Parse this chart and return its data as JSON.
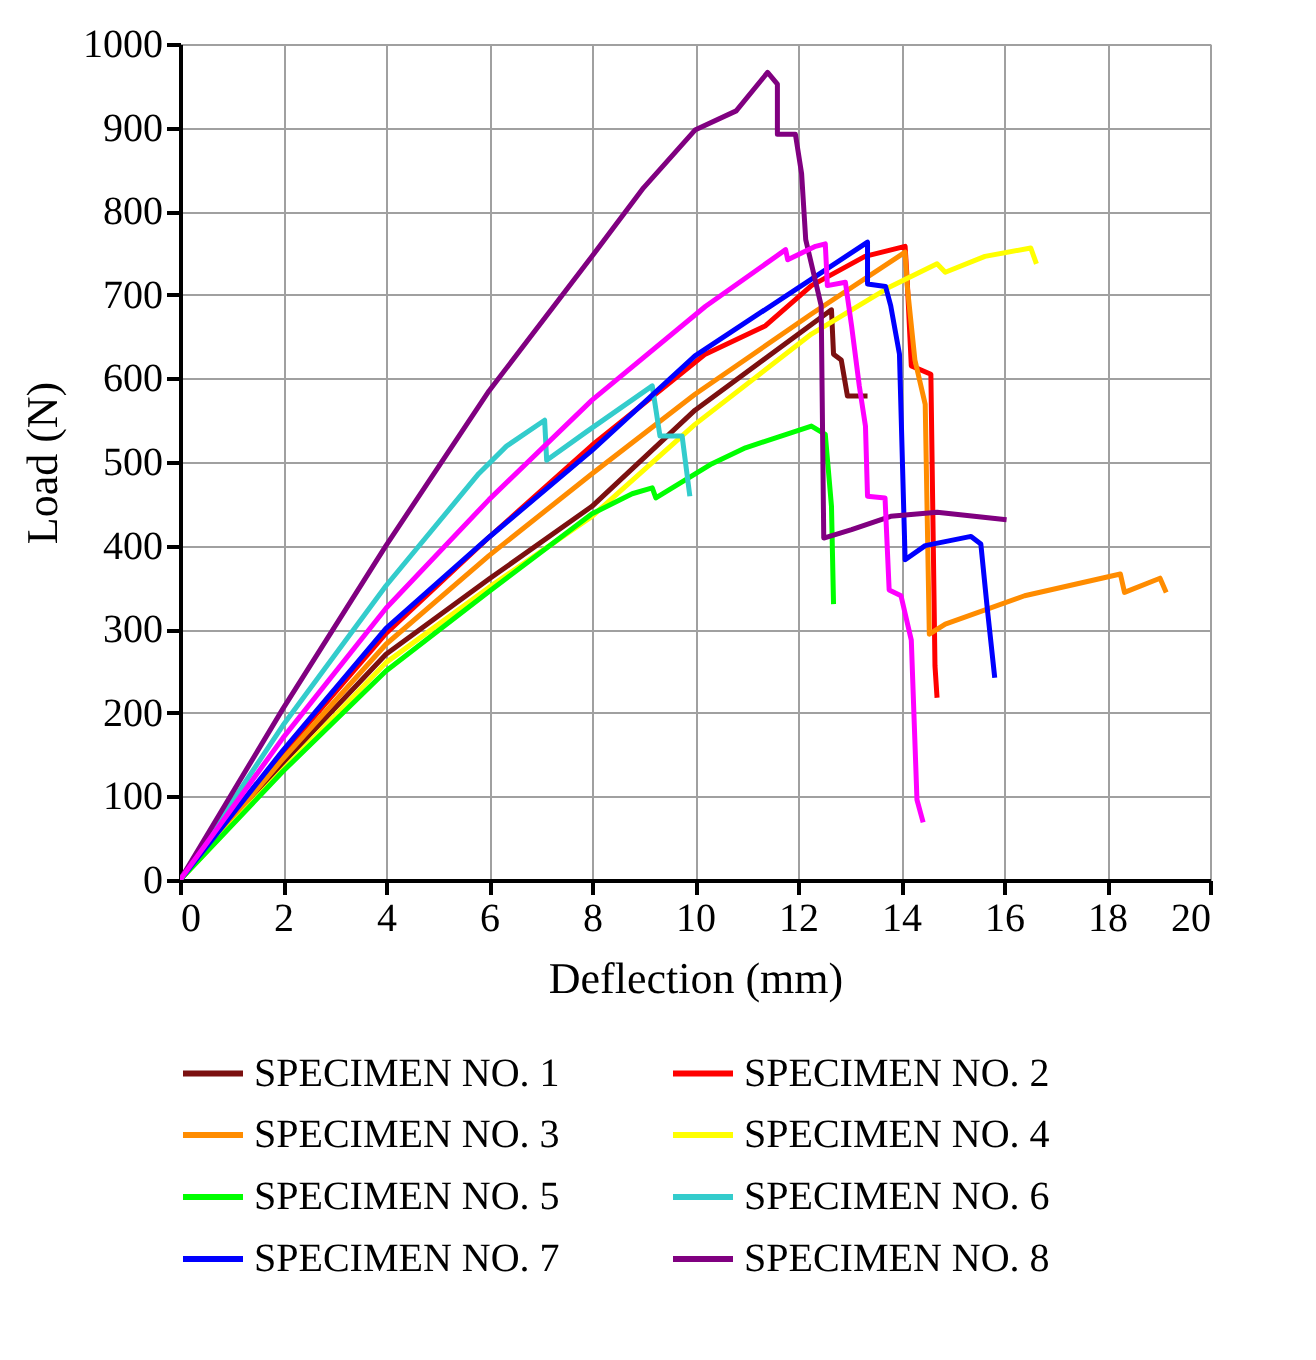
{
  "chart_data": {
    "type": "line",
    "xlabel": "Deflection (mm)",
    "ylabel": "Load (N)",
    "xlim": [
      0,
      20
    ],
    "xticks": [
      0,
      2,
      4,
      6,
      8,
      10,
      12,
      14,
      16,
      18,
      20
    ],
    "ylim": [
      0,
      1000
    ],
    "yticks": [
      0,
      100,
      200,
      300,
      400,
      500,
      600,
      700,
      800,
      900,
      1000
    ],
    "grid": true,
    "legend": "bottom",
    "marker": "none",
    "line_style": "solid",
    "series": [
      {
        "name": "SPECIMEN NO. 1",
        "color": "#7b1010",
        "x": [
          0,
          2,
          4,
          6,
          8,
          10,
          12.65,
          12.69,
          12.84,
          12.96,
          13.35
        ],
        "values": [
          0,
          140,
          270,
          360,
          447,
          562,
          682,
          629,
          622,
          579,
          579
        ]
      },
      {
        "name": "SPECIMEN NO. 2",
        "color": "#ff0000",
        "x": [
          0,
          2,
          4,
          6,
          8,
          10.2,
          11.37,
          12.26,
          13.3,
          14.08,
          14.12,
          14.2,
          14.58,
          14.66,
          14.7
        ],
        "values": [
          0,
          152,
          295,
          410,
          520,
          629,
          663,
          711,
          746,
          758,
          718,
          615,
          605,
          256,
          218
        ]
      },
      {
        "name": "SPECIMEN NO. 3",
        "color": "#ff8c00",
        "x": [
          0,
          2,
          4,
          6,
          8,
          10,
          12.26,
          14.08,
          14.12,
          14.27,
          14.47,
          14.55,
          14.86,
          16.4,
          18.26,
          18.34,
          19.03,
          19.15
        ],
        "values": [
          0,
          145,
          282,
          388,
          486,
          581,
          677,
          751,
          711,
          622,
          569,
          294,
          306,
          340,
          366,
          344,
          361,
          344
        ]
      },
      {
        "name": "SPECIMEN NO. 4",
        "color": "#ffff00",
        "x": [
          0,
          2,
          4,
          6,
          8,
          10,
          12.26,
          13.8,
          14.7,
          14.86,
          15.63,
          16.52,
          16.63
        ],
        "values": [
          0,
          132,
          260,
          350,
          435,
          545,
          653,
          710,
          737,
          727,
          746,
          756,
          737
        ]
      },
      {
        "name": "SPECIMEN NO. 5",
        "color": "#00ff00",
        "x": [
          0,
          2,
          4,
          6,
          8,
          8.78,
          9.17,
          9.24,
          10.33,
          10.98,
          12.26,
          12.53,
          12.65,
          12.69
        ],
        "values": [
          0,
          130,
          250,
          345,
          438,
          462,
          469,
          457,
          498,
          517,
          543,
          533,
          447,
          330
        ]
      },
      {
        "name": "SPECIMEN NO. 6",
        "color": "#33cccc",
        "x": [
          0,
          2,
          4,
          5.8,
          6.34,
          7.08,
          7.12,
          7.89,
          9.17,
          9.32,
          9.75,
          9.9
        ],
        "values": [
          0,
          185,
          352,
          486,
          519,
          550,
          502,
          536,
          591,
          531,
          531,
          459
        ]
      },
      {
        "name": "SPECIMEN NO. 7",
        "color": "#0000ff",
        "x": [
          0,
          2,
          4,
          6,
          8,
          10,
          13.35,
          13.35,
          13.7,
          13.8,
          13.97,
          14.08,
          14.47,
          15.36,
          15.55,
          15.67,
          15.82
        ],
        "values": [
          0,
          155,
          301,
          410,
          514,
          627,
          763,
          713,
          710,
          687,
          629,
          383,
          400,
          411,
          402,
          328,
          242
        ]
      },
      {
        "name": "SPECIMEN NO. 8",
        "color": "#800080",
        "x": [
          0,
          2,
          4,
          6,
          8,
          9,
          10,
          10.8,
          11.41,
          11.6,
          11.6,
          11.95,
          12.07,
          12.15,
          12.45,
          12.5,
          13.04,
          13.8,
          14.7,
          16.05
        ],
        "values": [
          0,
          205,
          400,
          585,
          746,
          828,
          897,
          920,
          966,
          952,
          892,
          892,
          845,
          766,
          687,
          409,
          419,
          435,
          440,
          431
        ]
      },
      {
        "color": "#ff00ff",
        "x": [
          0,
          2,
          4,
          6,
          8,
          10.2,
          11.76,
          11.8,
          12.34,
          12.53,
          12.57,
          12.92,
          13.04,
          13.19,
          13.31,
          13.35,
          13.69,
          13.77,
          14.0,
          14.2,
          14.31,
          14.43
        ],
        "values": [
          0,
          170,
          325,
          455,
          574,
          686,
          754,
          742,
          758,
          761,
          711,
          715,
          663,
          591,
          543,
          459,
          457,
          347,
          340,
          287,
          96,
          69
        ]
      }
    ]
  }
}
